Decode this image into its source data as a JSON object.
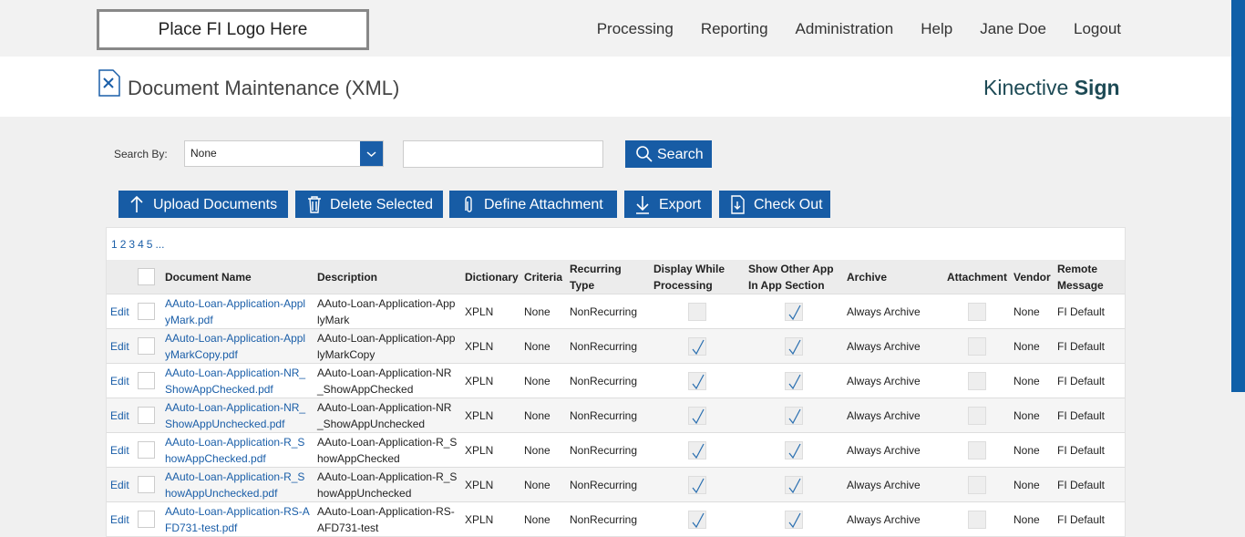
{
  "header": {
    "logo": "Place FI Logo Here",
    "nav": [
      "Processing",
      "Reporting",
      "Administration",
      "Help",
      "Jane Doe",
      "Logout"
    ]
  },
  "title_bar": {
    "title": "Document Maintenance (XML)",
    "brand_light": "Kinective",
    "brand_bold": "Sign"
  },
  "search": {
    "label": "Search By:",
    "select_value": "None",
    "button": "Search"
  },
  "toolbar": [
    "Upload Documents",
    "Delete Selected",
    "Define Attachment",
    "Export",
    "Check Out"
  ],
  "pagination": [
    "1",
    "2",
    "3",
    "4",
    "5",
    "..."
  ],
  "table": {
    "headers": [
      "Document Name",
      "Description",
      "Dictionary",
      "Criteria",
      "Recurring Type",
      "Display While Processing",
      "Show Other App In App Section",
      "Archive",
      "Attachment",
      "Vendor",
      "Remote Message"
    ],
    "rows": [
      {
        "edit": "Edit",
        "name": "AAuto-Loan-Application-ApplyMark.pdf",
        "description": "AAuto-Loan-Application-ApplyMark",
        "dictionary": "XPLN",
        "criteria": "None",
        "recurring": "NonRecurring",
        "display": false,
        "show_other": true,
        "archive": "Always Archive",
        "attachment": false,
        "vendor": "None",
        "remote": "FI Default"
      },
      {
        "edit": "Edit",
        "name": "AAuto-Loan-Application-ApplyMarkCopy.pdf",
        "description": "AAuto-Loan-Application-ApplyMarkCopy",
        "dictionary": "XPLN",
        "criteria": "None",
        "recurring": "NonRecurring",
        "display": true,
        "show_other": true,
        "archive": "Always Archive",
        "attachment": false,
        "vendor": "None",
        "remote": "FI Default"
      },
      {
        "edit": "Edit",
        "name": "AAuto-Loan-Application-NR_ShowAppChecked.pdf",
        "description": "AAuto-Loan-Application-NR_ShowAppChecked",
        "dictionary": "XPLN",
        "criteria": "None",
        "recurring": "NonRecurring",
        "display": true,
        "show_other": true,
        "archive": "Always Archive",
        "attachment": false,
        "vendor": "None",
        "remote": "FI Default"
      },
      {
        "edit": "Edit",
        "name": "AAuto-Loan-Application-NR_ShowAppUnchecked.pdf",
        "description": "AAuto-Loan-Application-NR_ShowAppUnchecked",
        "dictionary": "XPLN",
        "criteria": "None",
        "recurring": "NonRecurring",
        "display": true,
        "show_other": true,
        "archive": "Always Archive",
        "attachment": false,
        "vendor": "None",
        "remote": "FI Default"
      },
      {
        "edit": "Edit",
        "name": "AAuto-Loan-Application-R_ShowAppChecked.pdf",
        "description": "AAuto-Loan-Application-R_ShowAppChecked",
        "dictionary": "XPLN",
        "criteria": "None",
        "recurring": "NonRecurring",
        "display": true,
        "show_other": true,
        "archive": "Always Archive",
        "attachment": false,
        "vendor": "None",
        "remote": "FI Default"
      },
      {
        "edit": "Edit",
        "name": "AAuto-Loan-Application-R_ShowAppUnchecked.pdf",
        "description": "AAuto-Loan-Application-R_ShowAppUnchecked",
        "dictionary": "XPLN",
        "criteria": "None",
        "recurring": "NonRecurring",
        "display": true,
        "show_other": true,
        "archive": "Always Archive",
        "attachment": false,
        "vendor": "None",
        "remote": "FI Default"
      },
      {
        "edit": "Edit",
        "name": "AAuto-Loan-Application-RS-AFD731-test.pdf",
        "description": "AAuto-Loan-Application-RS-AFD731-test",
        "dictionary": "XPLN",
        "criteria": "None",
        "recurring": "NonRecurring",
        "display": true,
        "show_other": true,
        "archive": "Always Archive",
        "attachment": false,
        "vendor": "None",
        "remote": "FI Default"
      }
    ]
  }
}
